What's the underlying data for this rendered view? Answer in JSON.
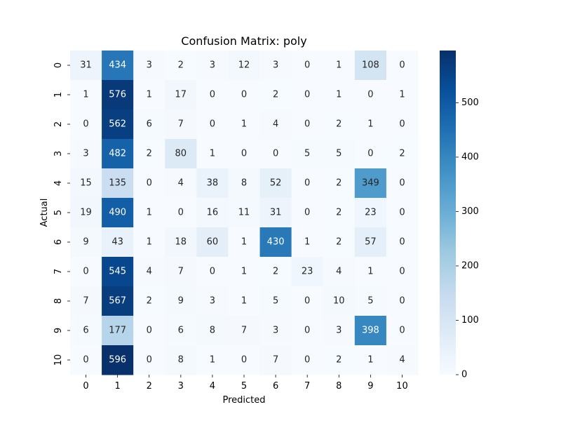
{
  "chart_data": {
    "type": "heatmap",
    "title": "Confusion Matrix: poly",
    "xlabel": "Predicted",
    "ylabel": "Actual",
    "x_tick_labels": [
      "0",
      "1",
      "2",
      "3",
      "4",
      "5",
      "6",
      "7",
      "8",
      "9",
      "10"
    ],
    "y_tick_labels": [
      "0",
      "1",
      "2",
      "3",
      "4",
      "5",
      "6",
      "7",
      "8",
      "9",
      "10"
    ],
    "matrix": [
      [
        31,
        434,
        3,
        2,
        3,
        12,
        3,
        0,
        1,
        108,
        0
      ],
      [
        1,
        576,
        1,
        17,
        0,
        0,
        2,
        0,
        1,
        0,
        1
      ],
      [
        0,
        562,
        6,
        7,
        0,
        1,
        4,
        0,
        2,
        1,
        0
      ],
      [
        3,
        482,
        2,
        80,
        1,
        0,
        0,
        5,
        5,
        0,
        2
      ],
      [
        15,
        135,
        0,
        4,
        38,
        8,
        52,
        0,
        2,
        349,
        0
      ],
      [
        19,
        490,
        1,
        0,
        16,
        11,
        31,
        0,
        2,
        23,
        0
      ],
      [
        9,
        43,
        1,
        18,
        60,
        1,
        430,
        1,
        2,
        57,
        0
      ],
      [
        0,
        545,
        4,
        7,
        0,
        1,
        2,
        23,
        4,
        1,
        0
      ],
      [
        7,
        567,
        2,
        9,
        3,
        1,
        5,
        0,
        10,
        5,
        0
      ],
      [
        6,
        177,
        0,
        6,
        8,
        7,
        3,
        0,
        3,
        398,
        0
      ],
      [
        0,
        596,
        0,
        8,
        1,
        0,
        7,
        0,
        2,
        1,
        4
      ]
    ],
    "colormap": "Blues",
    "colorbar": {
      "min": 0,
      "max": 596,
      "ticks": [
        0,
        100,
        200,
        300,
        400,
        500
      ],
      "tick_labels": [
        "0",
        "100",
        "200",
        "300",
        "400",
        "500"
      ]
    }
  }
}
